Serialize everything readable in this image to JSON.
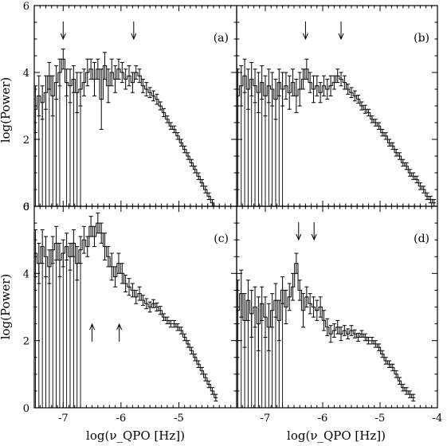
{
  "chart_data": {
    "type": "line",
    "ylabel": "log(Power)",
    "xlabel": "log(ν_QPO [Hz])",
    "xlim": [
      -7.5,
      -4.0
    ],
    "ylim": [
      0,
      6
    ],
    "x_ticks": [
      -7,
      -6,
      -5,
      -4
    ],
    "x_tick_labels": [
      "-7",
      "-6",
      "-5",
      "-4"
    ],
    "y_ticks": [
      0,
      2,
      4,
      6
    ],
    "y_tick_labels": [
      "0",
      "2",
      "4",
      "6"
    ],
    "grid": false,
    "panels": [
      {
        "label": "(a)",
        "arrows": [
          {
            "x": -7.0,
            "direction": "down"
          },
          {
            "x": -5.78,
            "direction": "down"
          }
        ],
        "series": [
          {
            "x": [
              -7.48,
              -7.42,
              -7.36,
              -7.3,
              -7.24,
              -7.18,
              -7.12,
              -7.06,
              -7.0,
              -6.94,
              -6.88,
              -6.82,
              -6.76,
              -6.7,
              -6.64,
              -6.58,
              -6.52,
              -6.46,
              -6.4,
              -6.34,
              -6.28,
              -6.22,
              -6.16,
              -6.1,
              -6.04,
              -5.98,
              -5.92,
              -5.86,
              -5.8,
              -5.74,
              -5.68,
              -5.62,
              -5.56,
              -5.5,
              -5.44,
              -5.38,
              -5.32,
              -5.26,
              -5.2,
              -5.14,
              -5.08,
              -5.02,
              -4.96,
              -4.9,
              -4.84,
              -4.78,
              -4.72,
              -4.66,
              -4.6,
              -4.54,
              -4.48,
              -4.42,
              -4.36
            ],
            "y": [
              2.9,
              3.3,
              3.1,
              3.4,
              3.9,
              3.3,
              3.7,
              4.0,
              4.4,
              3.7,
              3.6,
              3.8,
              3.4,
              3.5,
              3.7,
              4.0,
              4.1,
              3.8,
              4.1,
              3.2,
              4.2,
              3.6,
              4.0,
              3.8,
              4.1,
              4.0,
              3.8,
              3.9,
              3.7,
              4.0,
              3.9,
              3.6,
              3.5,
              3.4,
              3.3,
              3.2,
              3.0,
              2.8,
              2.6,
              2.4,
              2.3,
              2.1,
              1.9,
              1.7,
              1.5,
              1.3,
              1.1,
              0.9,
              0.7,
              0.5,
              0.3,
              0.1,
              -0.1
            ],
            "err": [
              0.7,
              0.6,
              0.5,
              0.5,
              0.4,
              0.6,
              0.5,
              0.4,
              0.3,
              0.4,
              0.5,
              0.4,
              0.6,
              0.5,
              0.4,
              0.4,
              0.3,
              0.5,
              0.3,
              0.9,
              0.4,
              0.5,
              0.4,
              0.4,
              0.3,
              0.3,
              0.3,
              0.3,
              0.3,
              0.2,
              0.2,
              0.2,
              0.2,
              0.15,
              0.15,
              0.15,
              0.12,
              0.12,
              0.1,
              0.1,
              0.1,
              0.1,
              0.1,
              0.1,
              0.1,
              0.1,
              0.1,
              0.1,
              0.1,
              0.1,
              0.1,
              0.1,
              0.1
            ]
          }
        ]
      },
      {
        "label": "(b)",
        "arrows": [
          {
            "x": -6.3,
            "direction": "down"
          },
          {
            "x": -5.68,
            "direction": "down"
          }
        ],
        "series": [
          {
            "x": [
              -7.48,
              -7.42,
              -7.36,
              -7.3,
              -7.24,
              -7.18,
              -7.12,
              -7.06,
              -7.0,
              -6.94,
              -6.88,
              -6.82,
              -6.76,
              -6.7,
              -6.64,
              -6.58,
              -6.52,
              -6.46,
              -6.4,
              -6.34,
              -6.28,
              -6.22,
              -6.16,
              -6.1,
              -6.04,
              -5.98,
              -5.92,
              -5.86,
              -5.8,
              -5.74,
              -5.68,
              -5.62,
              -5.56,
              -5.5,
              -5.44,
              -5.38,
              -5.32,
              -5.26,
              -5.2,
              -5.14,
              -5.08,
              -5.02,
              -4.96,
              -4.9,
              -4.84,
              -4.78,
              -4.72,
              -4.66,
              -4.6,
              -4.54,
              -4.48,
              -4.42,
              -4.36,
              -4.3,
              -4.24,
              -4.18,
              -4.12,
              -4.06
            ],
            "y": [
              3.3,
              3.6,
              3.9,
              3.5,
              3.8,
              3.6,
              3.4,
              3.7,
              3.3,
              3.6,
              3.5,
              3.2,
              3.7,
              3.5,
              3.6,
              3.4,
              3.7,
              3.3,
              3.5,
              3.8,
              4.1,
              3.7,
              3.5,
              3.6,
              3.4,
              3.6,
              3.5,
              3.6,
              3.7,
              3.9,
              3.8,
              3.7,
              3.5,
              3.4,
              3.3,
              3.2,
              3.0,
              2.9,
              2.8,
              2.6,
              2.5,
              2.4,
              2.2,
              2.1,
              1.9,
              1.8,
              1.6,
              1.5,
              1.3,
              1.2,
              1.0,
              0.9,
              0.8,
              0.6,
              0.5,
              0.3,
              0.2,
              0.1
            ],
            "err": [
              0.8,
              0.6,
              0.5,
              0.6,
              0.5,
              0.5,
              0.6,
              0.5,
              0.6,
              0.5,
              0.5,
              0.6,
              0.4,
              0.5,
              0.4,
              0.5,
              0.4,
              0.5,
              0.5,
              0.3,
              0.3,
              0.3,
              0.4,
              0.3,
              0.3,
              0.3,
              0.3,
              0.3,
              0.2,
              0.2,
              0.2,
              0.2,
              0.15,
              0.15,
              0.15,
              0.12,
              0.12,
              0.12,
              0.1,
              0.1,
              0.1,
              0.1,
              0.1,
              0.1,
              0.1,
              0.1,
              0.1,
              0.1,
              0.1,
              0.1,
              0.1,
              0.1,
              0.1,
              0.1,
              0.1,
              0.1,
              0.1,
              0.1
            ]
          }
        ]
      },
      {
        "label": "(c)",
        "arrows": [
          {
            "x": -6.5,
            "direction": "up"
          },
          {
            "x": -6.03,
            "direction": "up"
          }
        ],
        "series": [
          {
            "x": [
              -7.48,
              -7.42,
              -7.36,
              -7.3,
              -7.24,
              -7.18,
              -7.12,
              -7.06,
              -7.0,
              -6.94,
              -6.88,
              -6.82,
              -6.76,
              -6.7,
              -6.64,
              -6.58,
              -6.52,
              -6.46,
              -6.4,
              -6.34,
              -6.28,
              -6.22,
              -6.16,
              -6.1,
              -6.04,
              -5.98,
              -5.92,
              -5.86,
              -5.8,
              -5.74,
              -5.68,
              -5.62,
              -5.56,
              -5.5,
              -5.44,
              -5.38,
              -5.32,
              -5.26,
              -5.2,
              -5.14,
              -5.08,
              -5.02,
              -4.96,
              -4.9,
              -4.84,
              -4.78,
              -4.72,
              -4.66,
              -4.6,
              -4.54,
              -4.48,
              -4.42,
              -4.36
            ],
            "y": [
              4.6,
              4.3,
              4.8,
              4.5,
              4.2,
              4.7,
              4.9,
              4.4,
              4.6,
              4.8,
              4.5,
              4.9,
              4.3,
              4.7,
              5.0,
              4.8,
              5.4,
              5.1,
              5.5,
              5.2,
              4.8,
              4.5,
              4.2,
              3.9,
              4.3,
              4.0,
              3.7,
              3.6,
              3.5,
              3.3,
              3.4,
              3.2,
              3.1,
              3.0,
              3.1,
              3.0,
              2.9,
              2.7,
              2.6,
              2.5,
              2.5,
              2.4,
              2.3,
              2.1,
              1.9,
              1.7,
              1.5,
              1.3,
              1.1,
              0.9,
              0.7,
              0.5,
              0.3
            ],
            "err": [
              0.7,
              0.6,
              0.5,
              0.6,
              0.5,
              0.4,
              0.5,
              0.5,
              0.4,
              0.4,
              0.4,
              0.4,
              0.5,
              0.4,
              0.4,
              0.3,
              0.3,
              0.3,
              0.3,
              0.3,
              0.4,
              0.3,
              0.4,
              0.3,
              0.3,
              0.3,
              0.25,
              0.25,
              0.2,
              0.2,
              0.2,
              0.15,
              0.15,
              0.15,
              0.12,
              0.12,
              0.12,
              0.1,
              0.1,
              0.1,
              0.1,
              0.1,
              0.1,
              0.1,
              0.1,
              0.1,
              0.1,
              0.1,
              0.1,
              0.1,
              0.1,
              0.1,
              0.1
            ]
          }
        ]
      },
      {
        "label": "(d)",
        "arrows": [
          {
            "x": -6.42,
            "direction": "down"
          },
          {
            "x": -6.15,
            "direction": "down"
          }
        ],
        "series": [
          {
            "x": [
              -7.48,
              -7.42,
              -7.36,
              -7.3,
              -7.24,
              -7.18,
              -7.12,
              -7.06,
              -7.0,
              -6.94,
              -6.88,
              -6.82,
              -6.76,
              -6.7,
              -6.64,
              -6.58,
              -6.52,
              -6.46,
              -6.4,
              -6.34,
              -6.28,
              -6.22,
              -6.16,
              -6.1,
              -6.04,
              -5.98,
              -5.92,
              -5.86,
              -5.8,
              -5.74,
              -5.68,
              -5.62,
              -5.56,
              -5.5,
              -5.44,
              -5.38,
              -5.32,
              -5.26,
              -5.2,
              -5.14,
              -5.08,
              -5.02,
              -4.96,
              -4.9,
              -4.84,
              -4.78,
              -4.72,
              -4.66,
              -4.6,
              -4.54,
              -4.48,
              -4.42
            ],
            "y": [
              2.9,
              3.4,
              2.6,
              3.2,
              2.8,
              3.0,
              2.5,
              3.1,
              2.7,
              2.4,
              2.9,
              3.2,
              2.6,
              3.5,
              3.0,
              3.3,
              3.6,
              4.3,
              3.5,
              2.9,
              3.3,
              3.1,
              3.0,
              2.9,
              3.0,
              2.6,
              2.4,
              2.2,
              2.3,
              2.4,
              2.2,
              2.3,
              2.2,
              2.3,
              2.2,
              2.1,
              2.2,
              2.1,
              2.0,
              2.0,
              1.9,
              1.8,
              1.6,
              1.4,
              1.3,
              1.2,
              1.0,
              0.8,
              0.6,
              0.5,
              0.4,
              0.3
            ],
            "err": [
              0.9,
              0.7,
              0.8,
              0.6,
              0.7,
              0.6,
              0.8,
              0.5,
              0.6,
              0.7,
              0.5,
              0.5,
              0.6,
              0.4,
              0.5,
              0.4,
              0.4,
              0.3,
              0.3,
              0.5,
              0.3,
              0.3,
              0.3,
              0.3,
              0.3,
              0.3,
              0.25,
              0.25,
              0.2,
              0.2,
              0.2,
              0.15,
              0.15,
              0.15,
              0.12,
              0.12,
              0.1,
              0.1,
              0.1,
              0.1,
              0.1,
              0.1,
              0.1,
              0.1,
              0.1,
              0.1,
              0.1,
              0.1,
              0.1,
              0.1,
              0.1,
              0.1
            ]
          }
        ]
      }
    ]
  }
}
